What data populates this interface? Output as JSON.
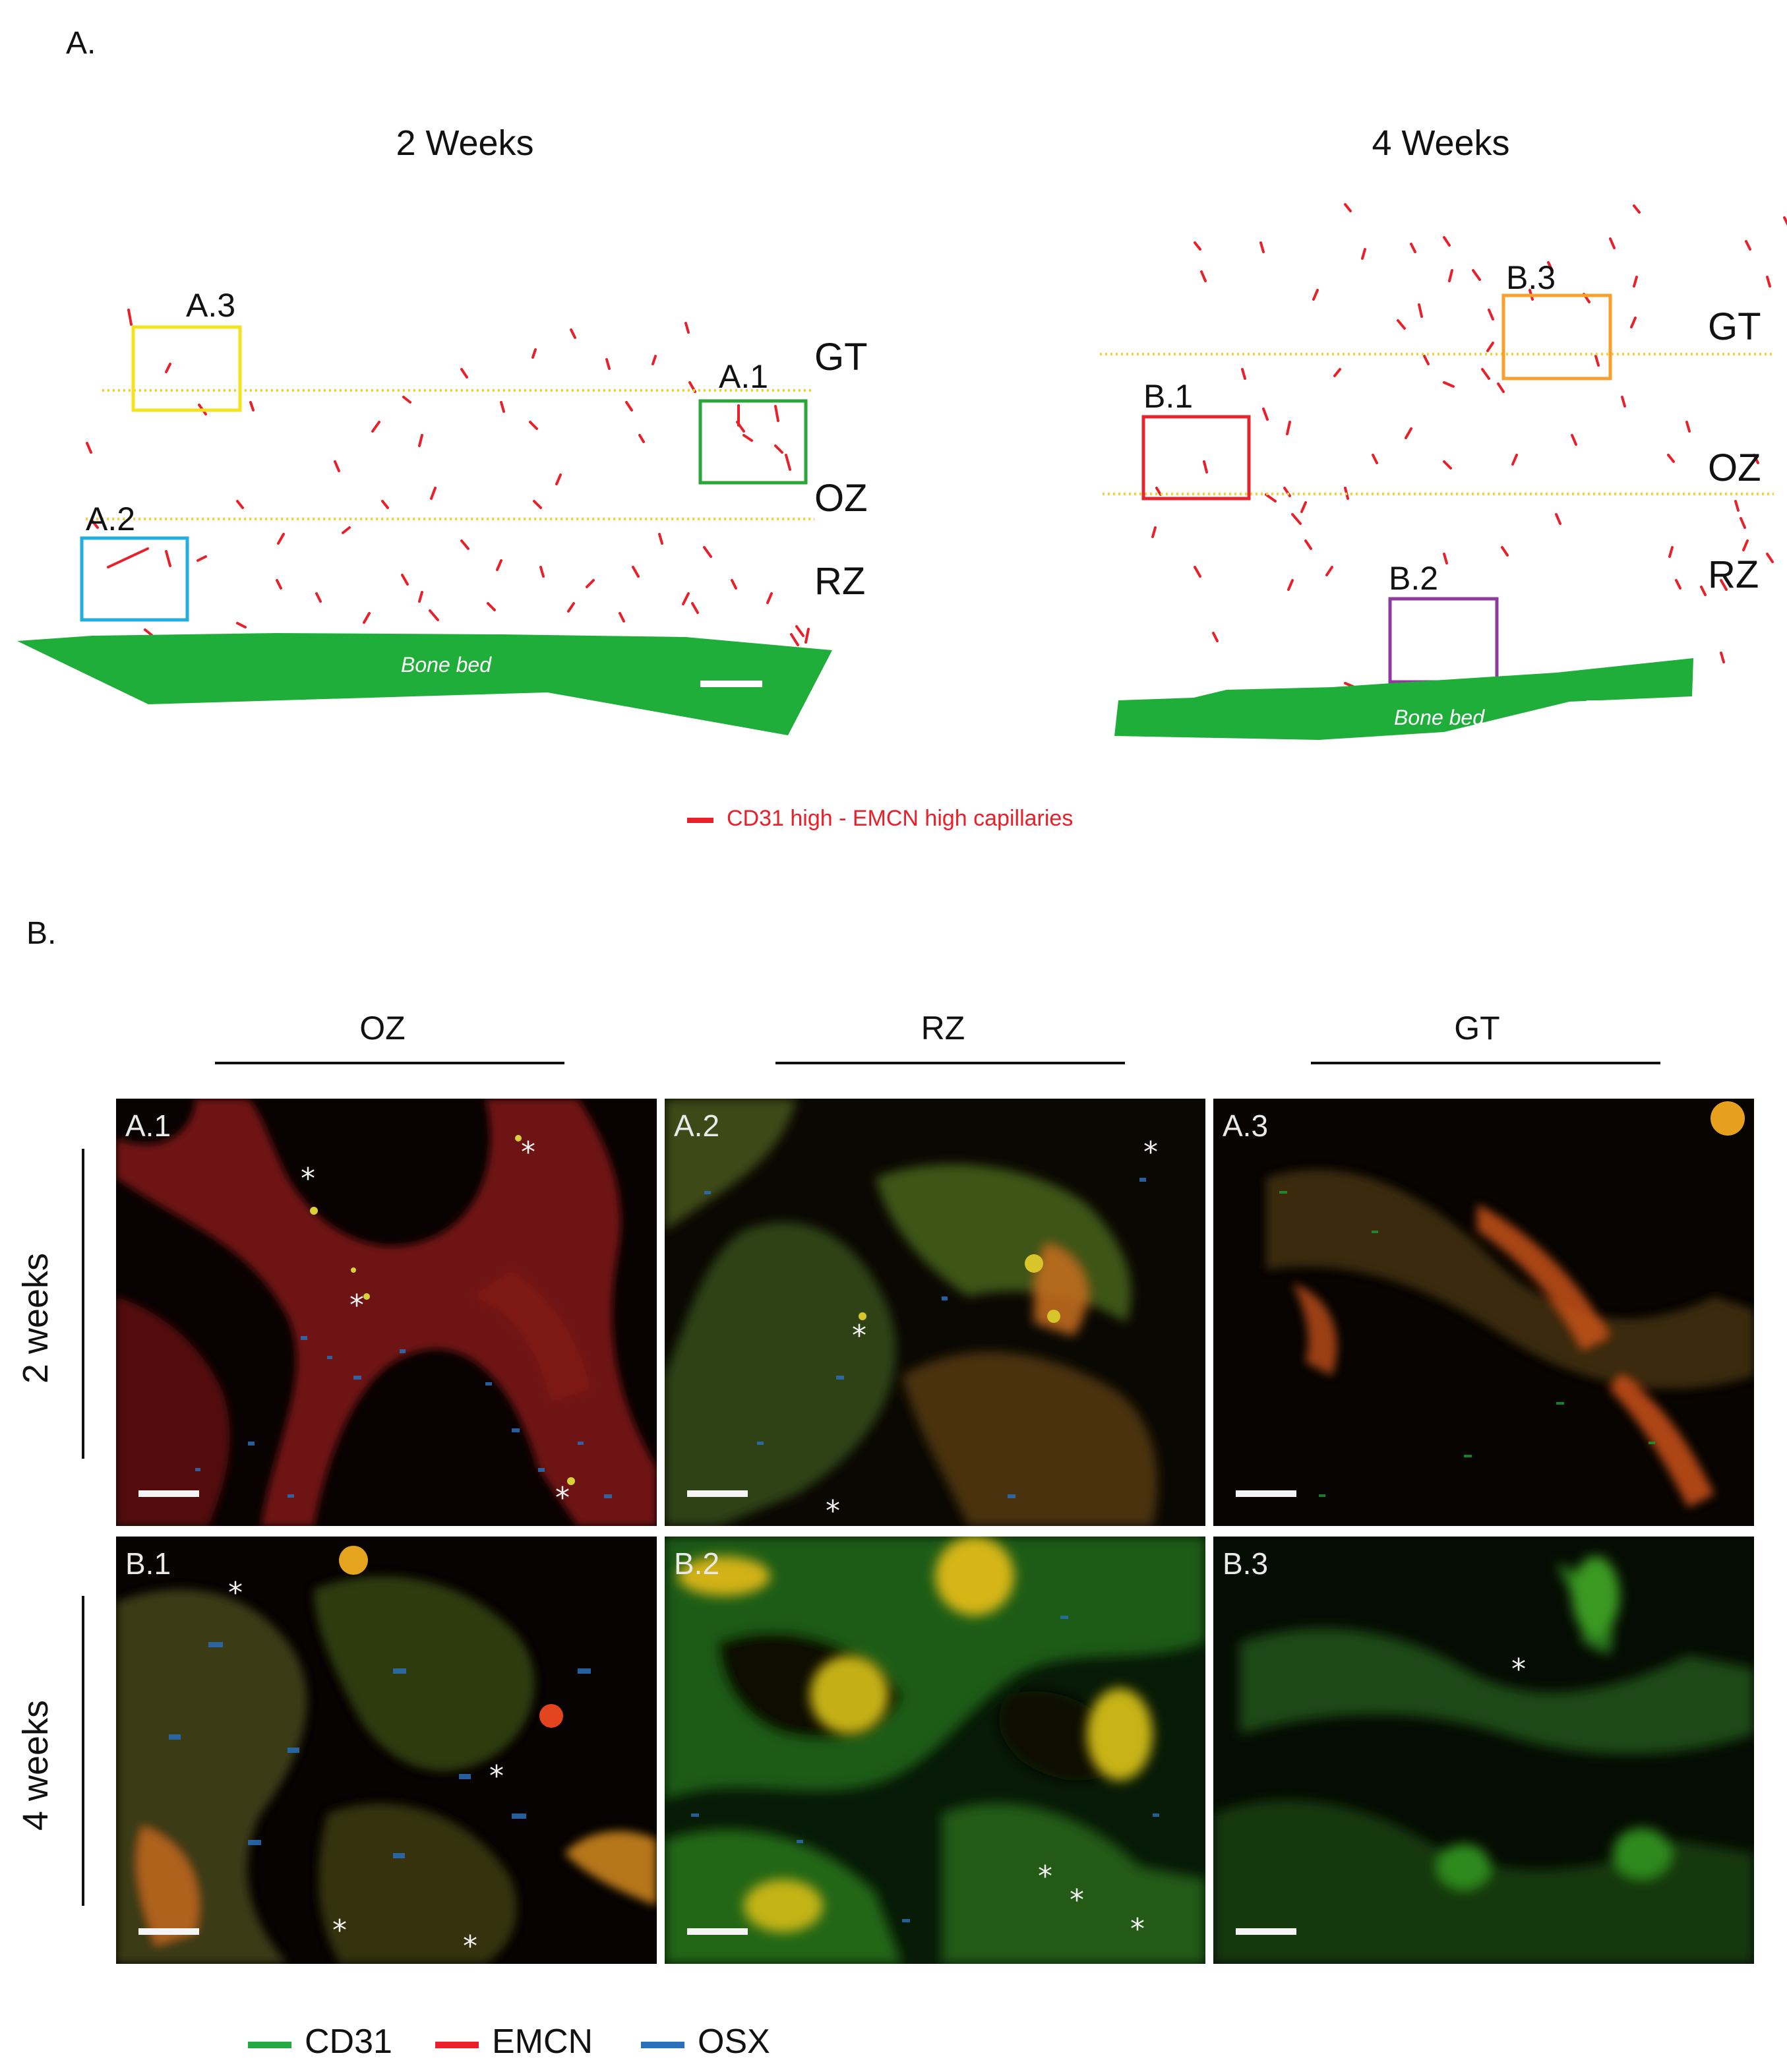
{
  "panel_a": {
    "label": "A.",
    "left_title": "2 Weeks",
    "right_title": "4 Weeks",
    "left_zones": [
      "GT",
      "OZ",
      "RZ"
    ],
    "right_zones": [
      "GT",
      "OZ",
      "RZ"
    ],
    "left_insets": [
      "A.3",
      "A.1",
      "A.2"
    ],
    "right_insets": [
      "B.3",
      "B.1",
      "B.2"
    ],
    "bone_bed_label": "Bone bed",
    "capillary_legend": "CD31 high - EMCN high capillaries",
    "colors": {
      "capillary": "#e8202a",
      "bone_bed": "#1fae3a",
      "zone_line": "#f2d23a",
      "inset_A3": "#f4e21a",
      "inset_A1": "#2aa639",
      "inset_A2": "#23aee0",
      "inset_B3": "#f7a12c",
      "inset_B1": "#e32530",
      "inset_B2": "#8e3b9d"
    }
  },
  "panel_b": {
    "label": "B.",
    "columns": [
      "OZ",
      "RZ",
      "GT"
    ],
    "rows": [
      "2 weeks",
      "4 weeks"
    ],
    "tiles": [
      [
        "A.1",
        "A.2",
        "A.3"
      ],
      [
        "B.1",
        "B.2",
        "B.3"
      ]
    ],
    "legend": [
      {
        "label": "CD31",
        "color": "#24a843"
      },
      {
        "label": "EMCN",
        "color": "#e8202a"
      },
      {
        "label": "OSX",
        "color": "#2a6fb8"
      }
    ]
  }
}
